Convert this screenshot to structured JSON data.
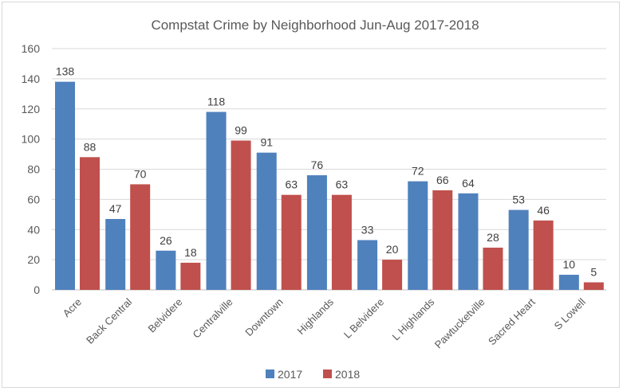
{
  "chart_data": {
    "type": "bar",
    "title": "Compstat Crime by Neighborhood Jun-Aug 2017-2018",
    "xlabel": "",
    "ylabel": "",
    "ylim": [
      0,
      160
    ],
    "yticks": [
      0,
      20,
      40,
      60,
      80,
      100,
      120,
      140,
      160
    ],
    "grid": true,
    "legend_position": "bottom",
    "categories": [
      "Acre",
      "Back Central",
      "Belvidere",
      "Centralville",
      "Downtown",
      "Highlands",
      "L Belvidere",
      "L Highlands",
      "Pawtucketville",
      "Sacred Heart",
      "S Lowell"
    ],
    "series": [
      {
        "name": "2017",
        "color": "#4f81bd",
        "values": [
          138,
          47,
          26,
          118,
          91,
          76,
          33,
          72,
          64,
          53,
          10
        ]
      },
      {
        "name": "2018",
        "color": "#c0504d",
        "values": [
          88,
          70,
          18,
          99,
          63,
          63,
          20,
          66,
          28,
          46,
          5
        ]
      }
    ]
  }
}
